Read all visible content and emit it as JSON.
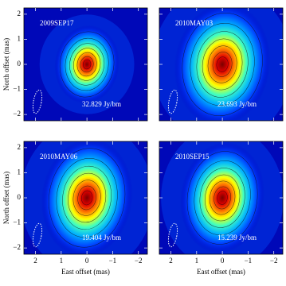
{
  "chart_data": [
    {
      "type": "image",
      "title": "2009SEP17",
      "annotation": "32.829 Jy/bm",
      "xlim": [
        2.45,
        -2.35
      ],
      "ylim": [
        -2.25,
        2.25
      ],
      "xticks": [
        2,
        1,
        0,
        {
          "value": -1,
          "label": "−1"
        },
        {
          "value": -2,
          "label": "−2"
        }
      ],
      "yticks": [
        {
          "value": -2,
          "label": "−2"
        },
        {
          "value": -1,
          "label": "−1"
        },
        0,
        1,
        2
      ],
      "ylabel": "North offset (mas)",
      "show_xticklabels": false,
      "show_yticklabels": true
    },
    {
      "type": "image",
      "title": "2010MAY03",
      "annotation": "23.693 Jy/bm",
      "xlim": [
        2.45,
        -2.35
      ],
      "ylim": [
        -2.25,
        2.25
      ],
      "xticks": [
        2,
        1,
        0,
        {
          "value": -1,
          "label": "−1"
        },
        {
          "value": -2,
          "label": "−2"
        }
      ],
      "yticks": [
        {
          "value": -2,
          "label": "−2"
        },
        {
          "value": -1,
          "label": "−1"
        },
        0,
        1,
        2
      ],
      "show_xticklabels": false,
      "show_yticklabels": false
    },
    {
      "type": "image",
      "title": "2010MAY06",
      "annotation": "19.404 Jy/bm",
      "xlim": [
        2.45,
        -2.35
      ],
      "ylim": [
        -2.25,
        2.25
      ],
      "xticks": [
        2,
        1,
        0,
        {
          "value": -1,
          "label": "−1"
        },
        {
          "value": -2,
          "label": "−2"
        }
      ],
      "yticks": [
        {
          "value": -2,
          "label": "−2"
        },
        {
          "value": -1,
          "label": "−1"
        },
        0,
        1,
        2
      ],
      "xlabel": "East offset (mas)",
      "ylabel": "North offset (mas)",
      "show_xticklabels": true,
      "show_yticklabels": true
    },
    {
      "type": "image",
      "title": "2010SEP15",
      "annotation": "15.239 Jy/bm",
      "xlim": [
        2.45,
        -2.35
      ],
      "ylim": [
        -2.25,
        2.25
      ],
      "xticks": [
        2,
        1,
        0,
        {
          "value": -1,
          "label": "−1"
        },
        {
          "value": -2,
          "label": "−2"
        }
      ],
      "yticks": [
        {
          "value": -2,
          "label": "−2"
        },
        {
          "value": -1,
          "label": "−1"
        },
        0,
        1,
        2
      ],
      "xlabel": "East offset (mas)",
      "show_xticklabels": true,
      "show_yticklabels": false
    }
  ]
}
